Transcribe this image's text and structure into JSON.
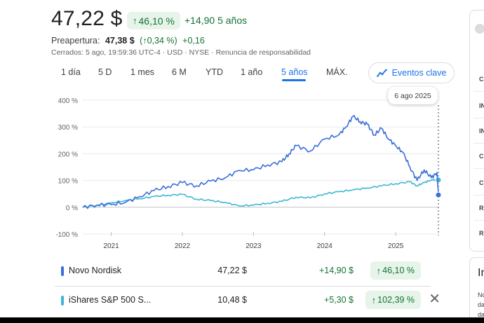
{
  "quote": {
    "price": "47,22 $",
    "change_pct": "46,10 %",
    "change_abs": "+14,90 5 años",
    "premarket_label": "Preapertura:",
    "premarket_price": "47,38 $",
    "premarket_pct": "(↑0,34 %)",
    "premarket_change": "+0,16",
    "closed_info": "Cerrados: 5 ago, 19:59:36 UTC-4 · USD · NYSE · Renuncia de responsabilidad"
  },
  "tabs": [
    {
      "label": "1 día"
    },
    {
      "label": "5 D"
    },
    {
      "label": "1 mes"
    },
    {
      "label": "6 M"
    },
    {
      "label": "YTD"
    },
    {
      "label": "1 año"
    },
    {
      "label": "5 años",
      "active": true
    },
    {
      "label": "MÁX."
    }
  ],
  "events_button": "Eventos clave",
  "tooltip_date": "6 ago 2025",
  "chart_data": {
    "type": "line",
    "y_tick_labels": [
      "400 %",
      "300 %",
      "200 %",
      "100 %",
      "0 %",
      "-100 %"
    ],
    "x_tick_labels": [
      "2021",
      "2022",
      "2023",
      "2024",
      "2025"
    ],
    "ylim": [
      -100,
      400
    ],
    "xlim": [
      2020.6,
      2025.6
    ],
    "grid": true,
    "series": [
      {
        "name": "Novo Nordisk",
        "color": "#3b6fd8",
        "x": [
          2020.6,
          2020.8,
          2021.0,
          2021.2,
          2021.4,
          2021.6,
          2021.8,
          2022.0,
          2022.2,
          2022.4,
          2022.6,
          2022.8,
          2023.0,
          2023.2,
          2023.4,
          2023.5,
          2023.6,
          2023.8,
          2024.0,
          2024.2,
          2024.3,
          2024.4,
          2024.5,
          2024.6,
          2024.7,
          2024.8,
          2024.9,
          2025.0,
          2025.1,
          2025.2,
          2025.3,
          2025.4,
          2025.5,
          2025.58,
          2025.6
        ],
        "y": [
          0,
          8,
          10,
          18,
          40,
          62,
          78,
          92,
          80,
          98,
          110,
          138,
          140,
          158,
          170,
          200,
          230,
          210,
          255,
          270,
          300,
          340,
          320,
          310,
          270,
          295,
          255,
          230,
          205,
          150,
          100,
          140,
          110,
          130,
          46
        ],
        "end_value": "46,10 %"
      },
      {
        "name": "iShares S&P 500 S...",
        "color": "#3fb6d6",
        "x": [
          2020.6,
          2020.8,
          2021.0,
          2021.2,
          2021.4,
          2021.6,
          2021.8,
          2022.0,
          2022.2,
          2022.4,
          2022.6,
          2022.8,
          2023.0,
          2023.2,
          2023.4,
          2023.6,
          2023.8,
          2024.0,
          2024.2,
          2024.4,
          2024.6,
          2024.8,
          2025.0,
          2025.2,
          2025.3,
          2025.4,
          2025.5,
          2025.6
        ],
        "y": [
          0,
          8,
          16,
          25,
          32,
          40,
          45,
          48,
          30,
          25,
          18,
          5,
          8,
          15,
          22,
          38,
          35,
          50,
          58,
          65,
          72,
          80,
          88,
          95,
          80,
          92,
          102,
          102
        ],
        "end_value": "102,39 %"
      }
    ]
  },
  "comparison": [
    {
      "name": "Novo Nordisk",
      "value": "47,22 $",
      "change": "+14,90 $",
      "pct": "46,10 %",
      "color": "#3b6fd8"
    },
    {
      "name": "iShares S&P 500 S...",
      "value": "10,48 $",
      "change": "+5,30 $",
      "pct": "102,39 %",
      "color": "#3fb6d6",
      "removable": true
    }
  ],
  "right_panel": {
    "items": [
      "C",
      "IN",
      "IN",
      "C",
      "C",
      "R",
      "R"
    ],
    "card2_title": "In",
    "card2_lines": [
      "No",
      "da",
      "da"
    ]
  }
}
